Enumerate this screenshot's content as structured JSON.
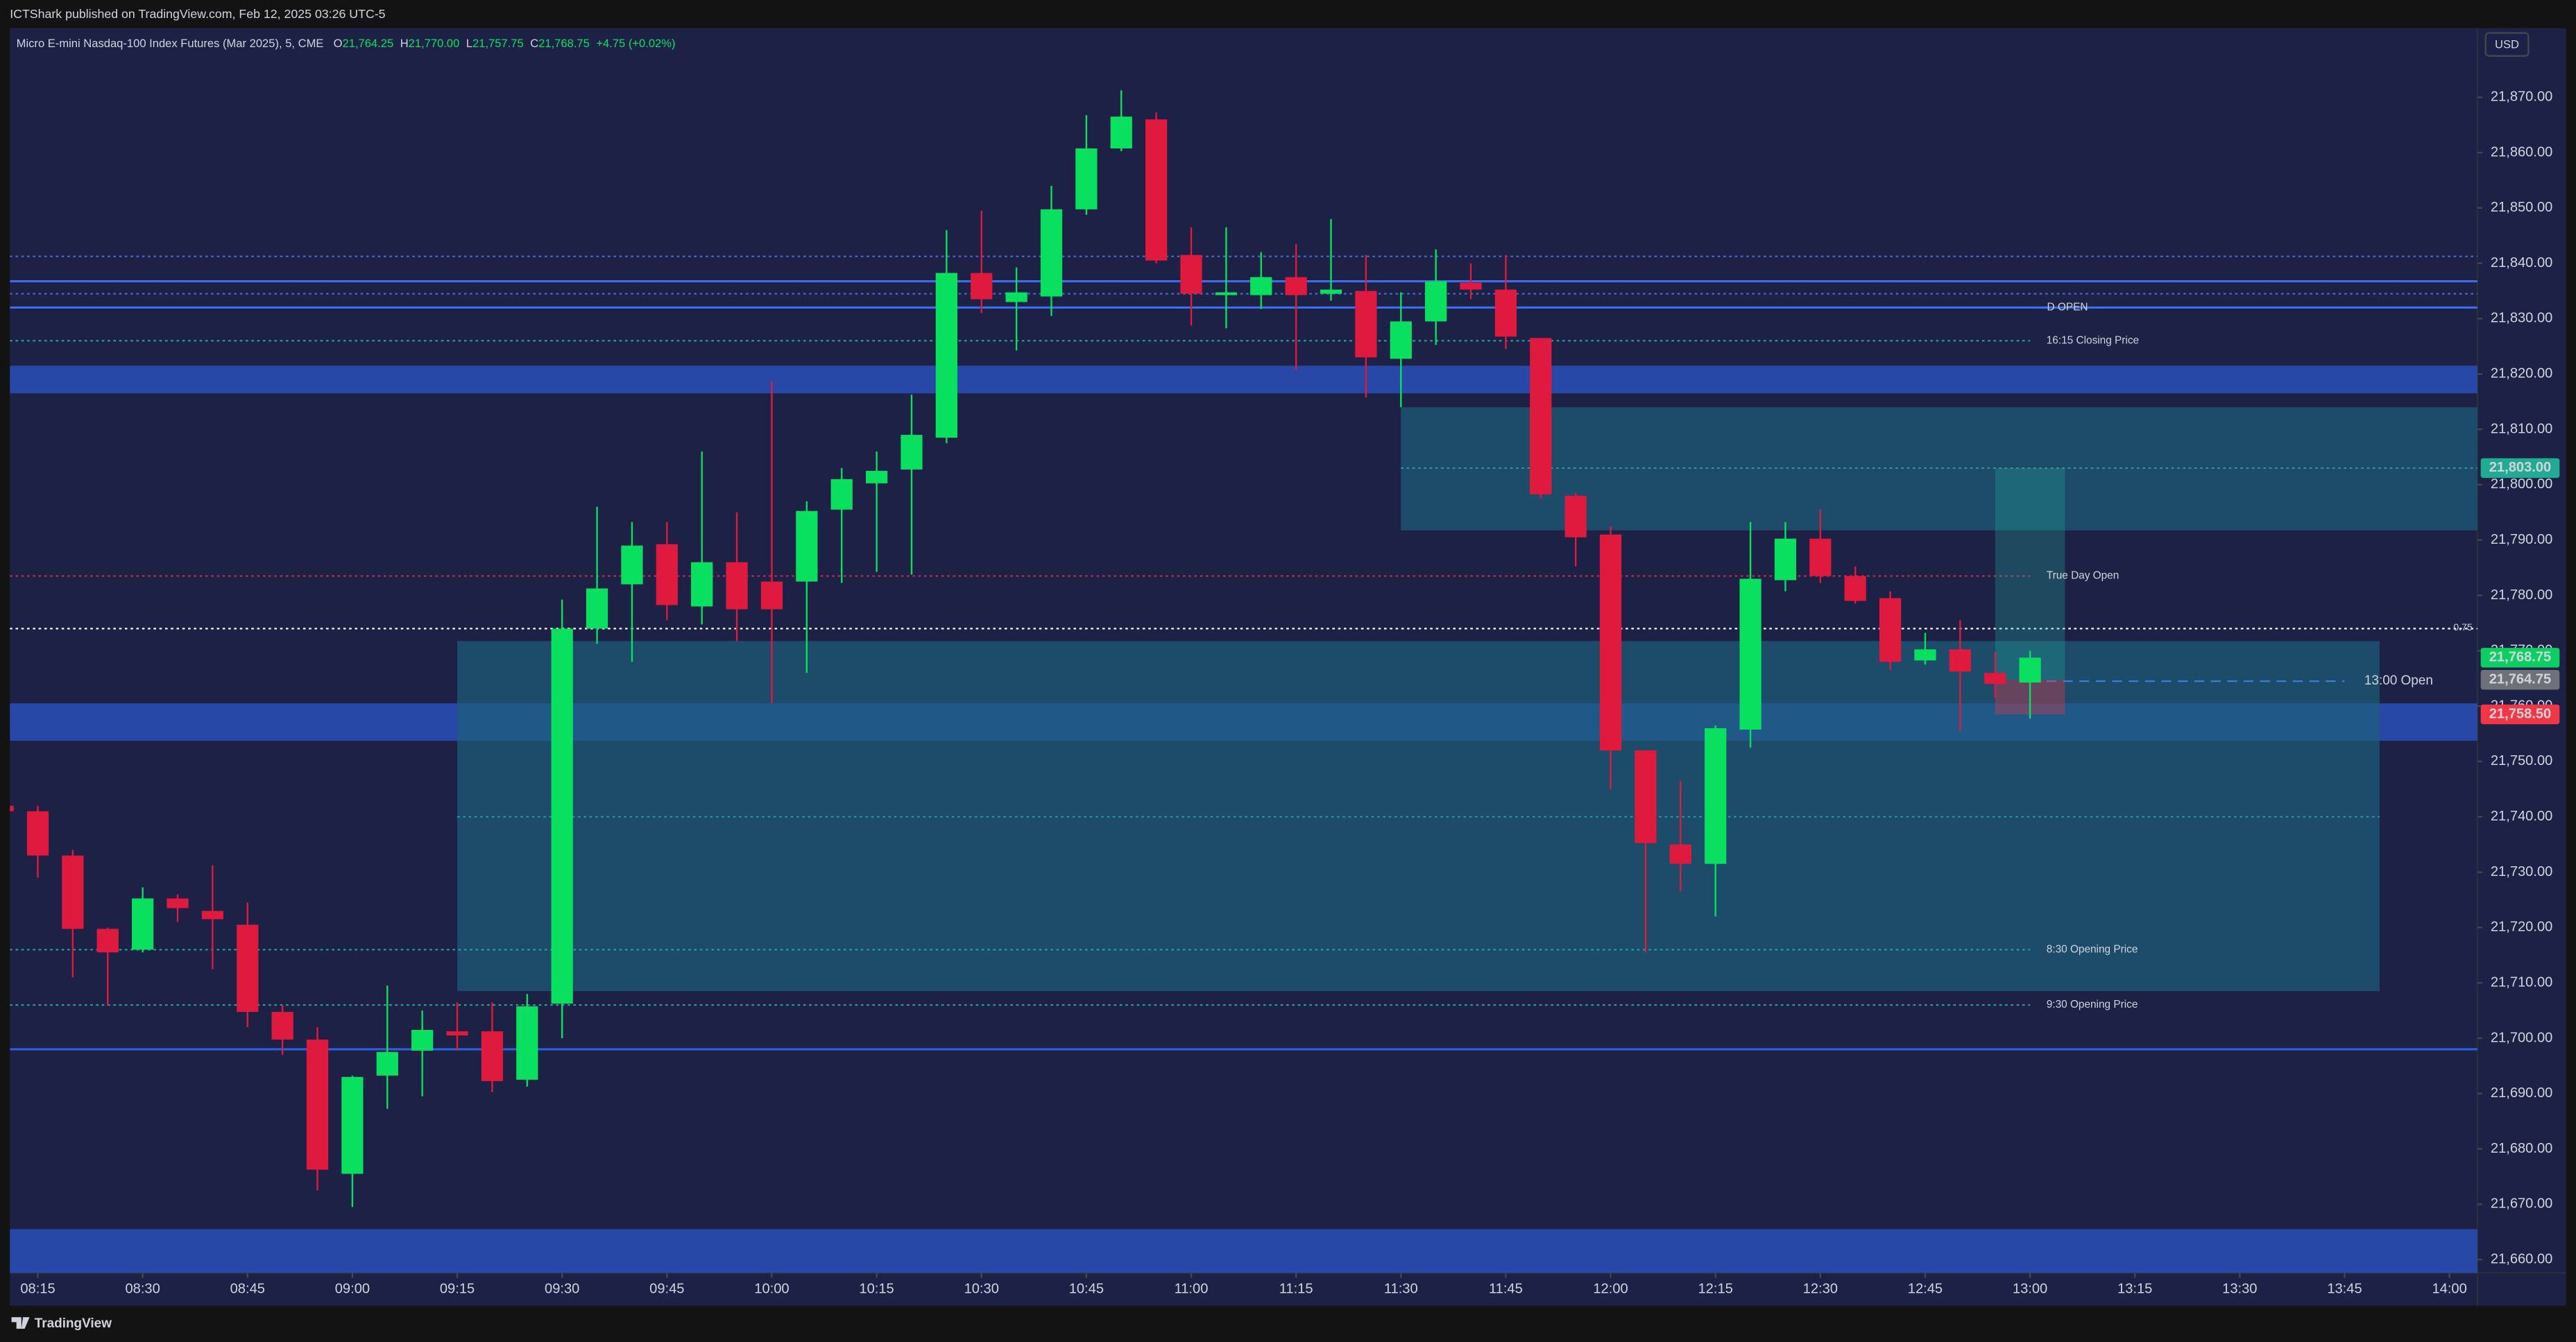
{
  "header": {
    "text": "ICTShark published on TradingView.com, Feb 12, 2025 03:26 UTC-5"
  },
  "legend": {
    "symbol": "Micro E-mini Nasdaq-100 Index Futures (Mar 2025), 5, CME",
    "fields": [
      {
        "key": "O",
        "label": "21,764.25"
      },
      {
        "key": "H",
        "label": "21,770.00"
      },
      {
        "key": "L",
        "label": "21,757.75"
      },
      {
        "key": "C",
        "label": "21,768.75"
      }
    ],
    "change": "+4.75 (+0.02%)"
  },
  "footer": "TradingView",
  "chart_data": {
    "type": "candlestick",
    "currency": "USD",
    "up_color": "#0ae060",
    "down_color": "#e0193f",
    "x": [
      "08:10",
      "08:15",
      "08:20",
      "08:25",
      "08:30",
      "08:35",
      "08:40",
      "08:45",
      "08:50",
      "08:55",
      "09:00",
      "09:05",
      "09:10",
      "09:15",
      "09:20",
      "09:25",
      "09:30",
      "09:35",
      "09:40",
      "09:45",
      "09:50",
      "09:55",
      "10:00",
      "10:05",
      "10:10",
      "10:15",
      "10:20",
      "10:25",
      "10:30",
      "10:35",
      "10:40",
      "10:45",
      "10:50",
      "10:55",
      "11:00",
      "11:05",
      "11:10",
      "11:15",
      "11:20",
      "11:25",
      "11:30",
      "11:35",
      "11:40",
      "11:45",
      "11:50",
      "11:55",
      "12:00",
      "12:05",
      "12:10",
      "12:15",
      "12:20",
      "12:25",
      "12:30",
      "12:35",
      "12:40",
      "12:45",
      "12:50",
      "12:55",
      "13:00"
    ],
    "open": [
      21742,
      21741,
      21733,
      21719.75,
      21716,
      21725.25,
      21723,
      21720.5,
      21704.75,
      21699.75,
      21675.5,
      21693.25,
      21697.75,
      21701.25,
      21701.25,
      21692.5,
      21706.25,
      21774,
      21782,
      21789.25,
      21778,
      21786,
      21782.5,
      21782.5,
      21795.5,
      21800.25,
      21802.75,
      21808.5,
      21838.25,
      21833,
      21834,
      21849.75,
      21860.75,
      21866,
      21841.5,
      21834.25,
      21834.25,
      21837.5,
      21834.5,
      21835,
      21822.75,
      21829.5,
      21836.5,
      21835.25,
      21826.5,
      21798,
      21791,
      21752,
      21735,
      21731.5,
      21755.75,
      21782.75,
      21790.25,
      21783.5,
      21779.5,
      21768.25,
      21770.25,
      21766,
      21764.25
    ],
    "high": [
      21743,
      21742,
      21734,
      21720,
      21727.25,
      21726,
      21731.25,
      21724.5,
      21706,
      21702,
      21693.25,
      21709.5,
      21705,
      21706.5,
      21706.5,
      21708,
      21779.25,
      21796,
      21793.25,
      21793.25,
      21806,
      21795,
      21818.75,
      21797,
      21803,
      21806,
      21816.25,
      21846,
      21849.5,
      21839.25,
      21854,
      21866.75,
      21871.25,
      21867.25,
      21846.5,
      21846.5,
      21842,
      21843.5,
      21848,
      21841.5,
      21834.75,
      21842.5,
      21840,
      21841.5,
      21826.5,
      21798.5,
      21792.5,
      21752,
      21746.5,
      21756.5,
      21793.25,
      21793.25,
      21795.5,
      21785.25,
      21780.75,
      21773.25,
      21775.5,
      21769.75,
      21770
    ],
    "low": [
      21740,
      21729,
      21711,
      21706,
      21715.5,
      21721,
      21712.5,
      21702,
      21697,
      21672.5,
      21669.5,
      21687.25,
      21689.5,
      21697.75,
      21690.25,
      21691.25,
      21700,
      21771.25,
      21768,
      21775.5,
      21774.75,
      21771.75,
      21760.5,
      21766,
      21782.25,
      21784.25,
      21783.75,
      21807.5,
      21831,
      21824.25,
      21830.5,
      21848.75,
      21860.25,
      21840,
      21828.75,
      21828.25,
      21831.75,
      21820.75,
      21833.25,
      21815.75,
      21814,
      21825.25,
      21833.5,
      21824.5,
      21797.5,
      21785.25,
      21745,
      21715.5,
      21726.5,
      21722,
      21752.5,
      21780.75,
      21782.25,
      21778.5,
      21766.5,
      21767.5,
      21755.5,
      21761.5,
      21757.75
    ],
    "close": [
      21741,
      21733,
      21719.75,
      21715.5,
      21725.25,
      21723.5,
      21721.5,
      21704.75,
      21699.75,
      21676.25,
      21693,
      21697.5,
      21701.5,
      21700.5,
      21692.25,
      21705.75,
      21774,
      21781.25,
      21789,
      21778.25,
      21786,
      21777.5,
      21777.5,
      21795.25,
      21801,
      21802.5,
      21809,
      21838.25,
      21833.5,
      21834.75,
      21849.75,
      21860.75,
      21866.5,
      21840.5,
      21834.5,
      21834.75,
      21837.5,
      21834.25,
      21835.25,
      21823,
      21829.5,
      21836.75,
      21835.25,
      21826.75,
      21798.25,
      21790.5,
      21752,
      21735.25,
      21731.5,
      21756,
      21783,
      21790.25,
      21783.5,
      21779,
      21768,
      21770.25,
      21766.25,
      21764,
      21768.75
    ],
    "xlim": [
      "08:11",
      "14:04"
    ],
    "xticks": [
      "08:15",
      "08:30",
      "08:45",
      "09:00",
      "09:15",
      "09:30",
      "09:45",
      "10:00",
      "10:15",
      "10:30",
      "10:45",
      "11:00",
      "11:15",
      "11:30",
      "11:45",
      "12:00",
      "12:15",
      "12:30",
      "12:45",
      "13:00",
      "13:15",
      "13:30",
      "13:45",
      "14:00"
    ],
    "ylim": [
      21657.6,
      21882.5
    ],
    "yticks": [
      {
        "value": 21660,
        "label": "21,660.00"
      },
      {
        "value": 21670,
        "label": "21,670.00"
      },
      {
        "value": 21680,
        "label": "21,680.00"
      },
      {
        "value": 21690,
        "label": "21,690.00"
      },
      {
        "value": 21700,
        "label": "21,700.00"
      },
      {
        "value": 21710,
        "label": "21,710.00"
      },
      {
        "value": 21720,
        "label": "21,720.00"
      },
      {
        "value": 21730,
        "label": "21,730.00"
      },
      {
        "value": 21740,
        "label": "21,740.00"
      },
      {
        "value": 21750,
        "label": "21,750.00"
      },
      {
        "value": 21760,
        "label": "21,760.00"
      },
      {
        "value": 21770,
        "label": "21,770.00"
      },
      {
        "value": 21780,
        "label": "21,780.00"
      },
      {
        "value": 21790,
        "label": "21,790.00"
      },
      {
        "value": 21800,
        "label": "21,800.00"
      },
      {
        "value": 21810,
        "label": "21,810.00"
      },
      {
        "value": 21820,
        "label": "21,820.00"
      },
      {
        "value": 21830,
        "label": "21,830.00"
      },
      {
        "value": 21840,
        "label": "21,840.00"
      },
      {
        "value": 21850,
        "label": "21,850.00"
      },
      {
        "value": 21860,
        "label": "21,860.00"
      },
      {
        "value": 21870,
        "label": "21,870.00"
      }
    ],
    "zones": [
      {
        "low": 21816.5,
        "high": 21821.5,
        "color": "#2a4fb8"
      },
      {
        "low": 21753.75,
        "high": 21760.5,
        "color": "#2a4fb8"
      },
      {
        "low": 21655,
        "high": 21665.5,
        "color": "#2a4fb8"
      },
      {
        "low": 21791.75,
        "high": 21814,
        "mid": 21803,
        "start": "11:30",
        "end": "14:04",
        "color": "#1d5f7a"
      },
      {
        "low": 21708.5,
        "high": 21771.75,
        "mid": 21740,
        "start": "09:15",
        "end": "13:50",
        "color": "#1d5f7a"
      }
    ],
    "levels": [
      {
        "value": 21841.25,
        "color": "#4a6fd0",
        "style": "dotted"
      },
      {
        "value": 21836.75,
        "color": "#3d6ee8",
        "style": "solid"
      },
      {
        "value": 21834.5,
        "color": "#4a6fd0",
        "style": "dotted"
      },
      {
        "value": 21832,
        "color": "#3d6ee8",
        "style": "solid",
        "label": "D OPEN"
      },
      {
        "value": 21826,
        "color": "#26a69a",
        "style": "dotted",
        "end": "13:00",
        "label": "16:15 Closing Price"
      },
      {
        "value": 21783.5,
        "color": "#c2304a",
        "style": "dotted",
        "end": "13:00",
        "label": "True Day Open"
      },
      {
        "value": 21774,
        "color": "#ffffff",
        "style": "dotted",
        "tag": "0.75",
        "tag_color": "#ff9800"
      },
      {
        "value": 21764.5,
        "color": "#3d7fe0",
        "style": "dashed",
        "start": "13:00",
        "end": "13:45",
        "label": "13:00 Open"
      },
      {
        "value": 21716,
        "color": "#26a69a",
        "style": "dotted",
        "end": "13:00",
        "label": "8:30 Opening Price"
      },
      {
        "value": 21706,
        "color": "#26a69a",
        "style": "dotted",
        "end": "13:00",
        "label": "9:30 Opening Price"
      },
      {
        "value": 21698,
        "color": "#2f5fe0",
        "style": "solid"
      }
    ],
    "position": {
      "start": "12:55",
      "end": "13:05",
      "entry": 21764.75,
      "target": 21803,
      "stop": 21758.5
    },
    "price_labels": [
      {
        "value": 21803,
        "label": "21,803.00",
        "color": "#22ab94"
      },
      {
        "value": 21768.75,
        "label": "21,768.75",
        "color": "#0ccf61"
      },
      {
        "value": 21764.75,
        "label": "21,764.75",
        "color": "#6f7178"
      },
      {
        "value": 21758.5,
        "label": "21,758.50",
        "color": "#f23645"
      }
    ]
  }
}
